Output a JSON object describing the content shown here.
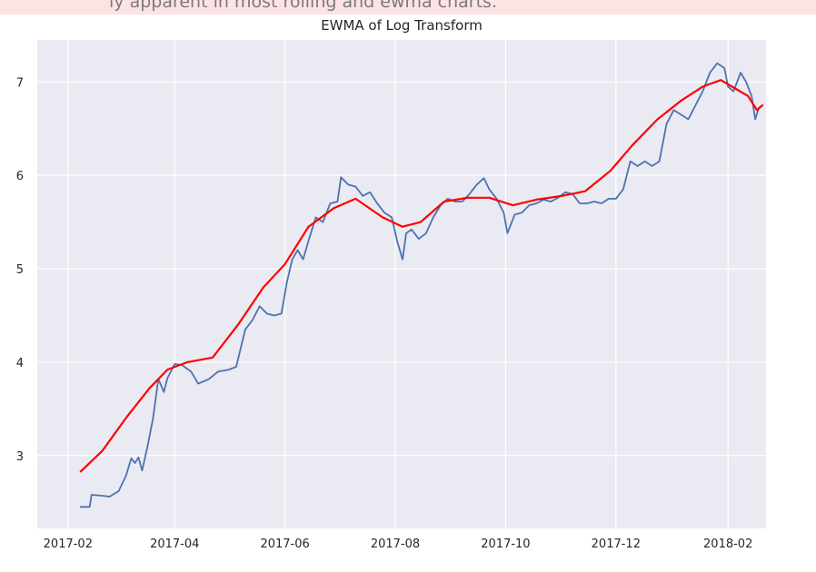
{
  "banner": {
    "text": "ly apparent in most rolling and ewma charts.",
    "color": "#fde3e3"
  },
  "chart_data": {
    "type": "line",
    "title": "EWMA of Log Transform",
    "xlabel": "",
    "ylabel": "",
    "x_ticks": [
      "2017-02",
      "2017-04",
      "2017-06",
      "2017-08",
      "2017-10",
      "2017-12",
      "2018-02"
    ],
    "y_ticks": [
      3,
      4,
      5,
      6,
      7
    ],
    "xlim": [
      "2017-01-15",
      "2018-02-22"
    ],
    "ylim": [
      2.22,
      7.45
    ],
    "grid": true,
    "background": "#eaeaf2",
    "series": [
      {
        "color": "#4c72b0",
        "points": [
          [
            "2017-02-08",
            2.45
          ],
          [
            "2017-02-13",
            2.45
          ],
          [
            "2017-02-14",
            2.58
          ],
          [
            "2017-02-20",
            2.57
          ],
          [
            "2017-02-24",
            2.56
          ],
          [
            "2017-03-01",
            2.62
          ],
          [
            "2017-03-05",
            2.78
          ],
          [
            "2017-03-08",
            2.97
          ],
          [
            "2017-03-10",
            2.92
          ],
          [
            "2017-03-12",
            2.98
          ],
          [
            "2017-03-14",
            2.84
          ],
          [
            "2017-03-17",
            3.1
          ],
          [
            "2017-03-20",
            3.4
          ],
          [
            "2017-03-23",
            3.82
          ],
          [
            "2017-03-26",
            3.68
          ],
          [
            "2017-03-28",
            3.83
          ],
          [
            "2017-04-01",
            3.98
          ],
          [
            "2017-04-05",
            3.97
          ],
          [
            "2017-04-10",
            3.9
          ],
          [
            "2017-04-14",
            3.77
          ],
          [
            "2017-04-20",
            3.82
          ],
          [
            "2017-04-25",
            3.9
          ],
          [
            "2017-05-01",
            3.92
          ],
          [
            "2017-05-05",
            3.95
          ],
          [
            "2017-05-10",
            4.35
          ],
          [
            "2017-05-14",
            4.45
          ],
          [
            "2017-05-18",
            4.6
          ],
          [
            "2017-05-22",
            4.52
          ],
          [
            "2017-05-26",
            4.5
          ],
          [
            "2017-05-30",
            4.52
          ],
          [
            "2017-06-02",
            4.85
          ],
          [
            "2017-06-05",
            5.1
          ],
          [
            "2017-06-08",
            5.2
          ],
          [
            "2017-06-11",
            5.1
          ],
          [
            "2017-06-14",
            5.3
          ],
          [
            "2017-06-18",
            5.55
          ],
          [
            "2017-06-22",
            5.5
          ],
          [
            "2017-06-26",
            5.7
          ],
          [
            "2017-06-30",
            5.72
          ],
          [
            "2017-07-02",
            5.98
          ],
          [
            "2017-07-06",
            5.9
          ],
          [
            "2017-07-10",
            5.88
          ],
          [
            "2017-07-14",
            5.78
          ],
          [
            "2017-07-18",
            5.82
          ],
          [
            "2017-07-22",
            5.7
          ],
          [
            "2017-07-26",
            5.6
          ],
          [
            "2017-07-30",
            5.55
          ],
          [
            "2017-08-02",
            5.3
          ],
          [
            "2017-08-05",
            5.1
          ],
          [
            "2017-08-07",
            5.38
          ],
          [
            "2017-08-10",
            5.42
          ],
          [
            "2017-08-14",
            5.32
          ],
          [
            "2017-08-18",
            5.38
          ],
          [
            "2017-08-22",
            5.55
          ],
          [
            "2017-08-26",
            5.68
          ],
          [
            "2017-08-30",
            5.75
          ],
          [
            "2017-09-03",
            5.72
          ],
          [
            "2017-09-07",
            5.72
          ],
          [
            "2017-09-11",
            5.8
          ],
          [
            "2017-09-15",
            5.9
          ],
          [
            "2017-09-19",
            5.97
          ],
          [
            "2017-09-22",
            5.85
          ],
          [
            "2017-09-26",
            5.75
          ],
          [
            "2017-09-30",
            5.6
          ],
          [
            "2017-10-02",
            5.38
          ],
          [
            "2017-10-06",
            5.58
          ],
          [
            "2017-10-10",
            5.6
          ],
          [
            "2017-10-14",
            5.68
          ],
          [
            "2017-10-18",
            5.7
          ],
          [
            "2017-10-22",
            5.74
          ],
          [
            "2017-10-26",
            5.72
          ],
          [
            "2017-10-30",
            5.76
          ],
          [
            "2017-11-03",
            5.82
          ],
          [
            "2017-11-07",
            5.8
          ],
          [
            "2017-11-11",
            5.7
          ],
          [
            "2017-11-15",
            5.7
          ],
          [
            "2017-11-19",
            5.72
          ],
          [
            "2017-11-23",
            5.7
          ],
          [
            "2017-11-27",
            5.75
          ],
          [
            "2017-12-01",
            5.75
          ],
          [
            "2017-12-05",
            5.85
          ],
          [
            "2017-12-09",
            6.15
          ],
          [
            "2017-12-13",
            6.1
          ],
          [
            "2017-12-17",
            6.15
          ],
          [
            "2017-12-21",
            6.1
          ],
          [
            "2017-12-25",
            6.15
          ],
          [
            "2017-12-29",
            6.55
          ],
          [
            "2018-01-02",
            6.7
          ],
          [
            "2018-01-06",
            6.65
          ],
          [
            "2018-01-10",
            6.6
          ],
          [
            "2018-01-14",
            6.75
          ],
          [
            "2018-01-18",
            6.9
          ],
          [
            "2018-01-22",
            7.1
          ],
          [
            "2018-01-26",
            7.2
          ],
          [
            "2018-01-30",
            7.15
          ],
          [
            "2018-02-01",
            6.95
          ],
          [
            "2018-02-04",
            6.9
          ],
          [
            "2018-02-08",
            7.1
          ],
          [
            "2018-02-11",
            7.0
          ],
          [
            "2018-02-14",
            6.85
          ],
          [
            "2018-02-16",
            6.6
          ],
          [
            "2018-02-18",
            6.72
          ],
          [
            "2018-02-20",
            6.75
          ]
        ]
      },
      {
        "color": "#ff0000",
        "points": [
          [
            "2017-02-08",
            2.83
          ],
          [
            "2017-02-20",
            3.05
          ],
          [
            "2017-03-05",
            3.4
          ],
          [
            "2017-03-18",
            3.72
          ],
          [
            "2017-03-28",
            3.92
          ],
          [
            "2017-04-08",
            4.0
          ],
          [
            "2017-04-22",
            4.05
          ],
          [
            "2017-05-06",
            4.4
          ],
          [
            "2017-05-20",
            4.8
          ],
          [
            "2017-06-01",
            5.05
          ],
          [
            "2017-06-14",
            5.45
          ],
          [
            "2017-06-28",
            5.65
          ],
          [
            "2017-07-10",
            5.75
          ],
          [
            "2017-07-25",
            5.55
          ],
          [
            "2017-08-05",
            5.45
          ],
          [
            "2017-08-15",
            5.5
          ],
          [
            "2017-08-28",
            5.72
          ],
          [
            "2017-09-10",
            5.76
          ],
          [
            "2017-09-22",
            5.76
          ],
          [
            "2017-10-05",
            5.68
          ],
          [
            "2017-10-18",
            5.74
          ],
          [
            "2017-11-01",
            5.78
          ],
          [
            "2017-11-14",
            5.83
          ],
          [
            "2017-11-28",
            6.05
          ],
          [
            "2017-12-10",
            6.32
          ],
          [
            "2017-12-24",
            6.6
          ],
          [
            "2018-01-06",
            6.8
          ],
          [
            "2018-01-18",
            6.95
          ],
          [
            "2018-01-28",
            7.02
          ],
          [
            "2018-02-05",
            6.93
          ],
          [
            "2018-02-12",
            6.85
          ],
          [
            "2018-02-17",
            6.7
          ],
          [
            "2018-02-20",
            6.75
          ]
        ]
      }
    ]
  }
}
